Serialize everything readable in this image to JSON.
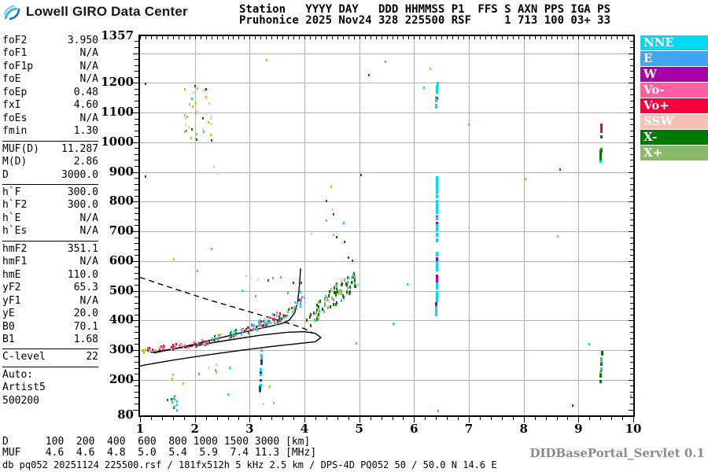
{
  "branding": {
    "logo_text": "Lowell GIRO Data Center"
  },
  "header": {
    "line1": "Station   YYYY DAY   DDD HHMMSS P1  FFS S AXN PPS IGA PS",
    "line2": "Pruhonice 2025 Nov24 328 225500 RSF     1 713 100 03+ 33"
  },
  "params": {
    "rows": [
      {
        "label": "foF2",
        "value": "3.950"
      },
      {
        "label": "foF1",
        "value": "N/A"
      },
      {
        "label": "foF1p",
        "value": "N/A"
      },
      {
        "label": "foE",
        "value": "N/A"
      },
      {
        "label": "foEp",
        "value": "0.48"
      },
      {
        "label": "fxI",
        "value": "4.60"
      },
      {
        "label": "foEs",
        "value": "N/A"
      },
      {
        "label": "fmin",
        "value": "1.30"
      },
      {
        "divider": true
      },
      {
        "label": "MUF(D)",
        "value": "11.287"
      },
      {
        "label": "M(D)",
        "value": "2.86"
      },
      {
        "label": "D",
        "value": "3000.0"
      },
      {
        "divider": true
      },
      {
        "label": "h`F",
        "value": "300.0"
      },
      {
        "label": "h`F2",
        "value": "300.0"
      },
      {
        "label": "h`E",
        "value": "N/A"
      },
      {
        "label": "h`Es",
        "value": "N/A"
      },
      {
        "divider": true
      },
      {
        "label": "hmF2",
        "value": "351.1"
      },
      {
        "label": "hmF1",
        "value": "N/A"
      },
      {
        "label": "hmE",
        "value": "110.0"
      },
      {
        "label": "yF2",
        "value": "65.3"
      },
      {
        "label": "yF1",
        "value": "N/A"
      },
      {
        "label": "yE",
        "value": "20.0"
      },
      {
        "label": "B0",
        "value": "70.1"
      },
      {
        "label": "B1",
        "value": "1.68"
      },
      {
        "divider": true
      },
      {
        "label": "C-level",
        "value": "22"
      },
      {
        "divider": true
      },
      {
        "label": "Auto:",
        "value": ""
      },
      {
        "label": "Artist5",
        "value": ""
      },
      {
        "label": "500200",
        "value": ""
      }
    ]
  },
  "legend": {
    "items": [
      {
        "label": "NNE",
        "color": "#00d9ef"
      },
      {
        "label": "E",
        "color": "#3ea6f2"
      },
      {
        "label": "W",
        "color": "#a800a8"
      },
      {
        "label": "Vo-",
        "color": "#ff5fa2"
      },
      {
        "label": "Vo+",
        "color": "#f5003d"
      },
      {
        "label": "SSW",
        "color": "#f7c0b5"
      },
      {
        "label": "X-",
        "color": "#007a00"
      },
      {
        "label": "X+",
        "color": "#86ba68"
      }
    ]
  },
  "dmuf": {
    "d_label": "D",
    "d_values": [
      "100",
      "200",
      "400",
      "600",
      "800",
      "1000",
      "1500",
      "3000"
    ],
    "d_unit": "[km]",
    "muf_label": "MUF",
    "muf_values": [
      "4.6",
      "4.6",
      "4.8",
      "5.0",
      "5.4",
      "5.9",
      "7.4",
      "11.3"
    ],
    "muf_unit": "[MHz]"
  },
  "footer": {
    "db_line": "db pq052 20251124 225500.rsf / 181fx512h 5 kHz 2.5 km / DPS-4D PQ052 50 / 50.0 N 14.6 E",
    "servlet": "DIDBasePortal_Servlet 0.1"
  },
  "chart_data": {
    "type": "scatter",
    "title": "Pruhonice digisonde ionogram 2025 Nov24 225500",
    "x_unit": "MHz",
    "y_unit": "km",
    "x_range": [
      1,
      10
    ],
    "y_range": [
      80,
      1357
    ],
    "x_ticks": [
      1,
      2,
      3,
      4,
      5,
      6,
      7,
      8,
      9,
      10
    ],
    "y_tick_labels": [
      1357,
      1200,
      1100,
      1000,
      900,
      800,
      700,
      600,
      500,
      400,
      300,
      200,
      80
    ],
    "grid": {
      "x_step": 1,
      "y_step": 100,
      "color": "#b2b2b2",
      "legend_position": "right"
    },
    "colors": {
      "nne": "#00d9ef",
      "e": "#3ea6f2",
      "w": "#a800a8",
      "vom": "#ff5fa2",
      "vop": "#f5003d",
      "ssw": "#f7c0b5",
      "xm": "#007a00",
      "xp": "#86ba68",
      "yellow": "#c2c400",
      "navy": "#2233cc"
    },
    "curves": [
      {
        "name": "forecast-dashed",
        "style": "dashed",
        "points": [
          [
            1.0,
            545
          ],
          [
            1.4,
            520
          ],
          [
            1.8,
            496
          ],
          [
            2.2,
            472
          ],
          [
            2.6,
            450
          ],
          [
            3.0,
            429
          ],
          [
            3.4,
            407
          ],
          [
            3.8,
            385
          ],
          [
            4.0,
            372
          ],
          [
            4.15,
            358
          ]
        ]
      },
      {
        "name": "o-trace",
        "style": "solid",
        "points": [
          [
            1.25,
            290
          ],
          [
            1.6,
            303
          ],
          [
            2.0,
            320
          ],
          [
            2.4,
            338
          ],
          [
            2.8,
            356
          ],
          [
            3.1,
            369
          ],
          [
            3.4,
            381
          ],
          [
            3.6,
            390
          ],
          [
            3.72,
            400
          ],
          [
            3.82,
            425
          ],
          [
            3.88,
            465
          ],
          [
            3.91,
            520
          ],
          [
            3.93,
            575
          ]
        ]
      },
      {
        "name": "trace-loop",
        "style": "solid",
        "points": [
          [
            1.2,
            292
          ],
          [
            2.0,
            315
          ],
          [
            2.6,
            333
          ],
          [
            3.2,
            350
          ],
          [
            3.7,
            360
          ],
          [
            4.0,
            362
          ],
          [
            4.2,
            356
          ],
          [
            4.3,
            342
          ],
          [
            4.2,
            328
          ],
          [
            3.9,
            322
          ],
          [
            3.4,
            312
          ],
          [
            2.8,
            298
          ],
          [
            2.2,
            283
          ],
          [
            1.6,
            266
          ],
          [
            1.1,
            250
          ],
          [
            1.0,
            246
          ]
        ]
      }
    ],
    "clusters": [
      {
        "name": "F-trace-low",
        "mode": "line",
        "f": [
          1.03,
          2.1
        ],
        "h": [
          297,
          322
        ],
        "jf": 0.02,
        "jh": 9,
        "n": 42,
        "size": [
          2,
          3
        ],
        "colors": [
          [
            "vop",
            3
          ],
          [
            "vom",
            3
          ],
          [
            "yellow",
            1.5
          ],
          [
            "ssw",
            1
          ],
          [
            "xm",
            0.8
          ],
          [
            "w",
            0.3
          ]
        ]
      },
      {
        "name": "F-trace-start-yellow",
        "mode": "box",
        "f": [
          1.02,
          1.12
        ],
        "h": [
          288,
          302
        ],
        "n": 4,
        "size": [
          2,
          3
        ],
        "colors": [
          [
            "yellow",
            1
          ]
        ]
      },
      {
        "name": "F-trace-mid",
        "mode": "line",
        "f": [
          2.1,
          3.05
        ],
        "h": [
          322,
          372
        ],
        "jf": 0.02,
        "jh": 11,
        "n": 46,
        "size": [
          2,
          3
        ],
        "colors": [
          [
            "vop",
            3
          ],
          [
            "vom",
            2.5
          ],
          [
            "xm",
            2
          ],
          [
            "nne",
            1.2
          ],
          [
            "ssw",
            0.8
          ],
          [
            "yellow",
            0.5
          ],
          [
            "w",
            0.4
          ],
          [
            "e",
            0.3
          ]
        ]
      },
      {
        "name": "F-trace-knot",
        "mode": "line",
        "f": [
          3.0,
          3.55
        ],
        "h": [
          368,
          415
        ],
        "jf": 0.03,
        "jh": 16,
        "n": 55,
        "size": [
          2,
          3
        ],
        "colors": [
          [
            "nne",
            3
          ],
          [
            "vom",
            2
          ],
          [
            "vop",
            1.5
          ],
          [
            "xm",
            1.5
          ],
          [
            "ssw",
            1
          ],
          [
            "e",
            0.5
          ],
          [
            "yellow",
            0.5
          ],
          [
            "xp",
            0.5
          ]
        ]
      },
      {
        "name": "F-trace-rise",
        "mode": "line",
        "f": [
          3.5,
          3.98
        ],
        "h": [
          400,
          472
        ],
        "jf": 0.03,
        "jh": 14,
        "n": 40,
        "size": [
          2,
          3
        ],
        "colors": [
          [
            "nne",
            3
          ],
          [
            "xm",
            2
          ],
          [
            "vom",
            1.2
          ],
          [
            "xp",
            1
          ],
          [
            "ssw",
            0.8
          ],
          [
            "vop",
            0.7
          ],
          [
            "e",
            0.5
          ]
        ]
      },
      {
        "name": "X-trace-columns",
        "mode": "line",
        "f": [
          4.0,
          4.95
        ],
        "h": [
          398,
          545
        ],
        "jf": 0.045,
        "jh": 32,
        "n": 85,
        "size": [
          2,
          4
        ],
        "colors": [
          [
            "xm",
            5.5
          ],
          [
            "xp",
            2.2
          ],
          [
            "nne",
            0.7
          ],
          [
            "ssw",
            0.5
          ],
          [
            "yellow",
            0.5
          ],
          [
            "e",
            0.3
          ]
        ]
      },
      {
        "name": "spread-above-trace",
        "mode": "box",
        "f": [
          2.85,
          4.0
        ],
        "h": [
          470,
          565
        ],
        "n": 14,
        "size": [
          2,
          3
        ],
        "colors": [
          [
            "nne",
            2
          ],
          [
            "ssw",
            1
          ],
          [
            "vom",
            1
          ],
          [
            "yellow",
            0.6
          ],
          [
            "w",
            0.4
          ],
          [
            "xm",
            0.6
          ]
        ]
      },
      {
        "name": "spreadF-column-6.4",
        "mode": "line",
        "f": [
          6.41,
          6.42
        ],
        "h": [
          424,
          886
        ],
        "jf": 0,
        "jh": 4,
        "n": 62,
        "size": [
          3,
          5
        ],
        "colors": [
          [
            "nne",
            5
          ],
          [
            "w",
            1
          ]
        ]
      },
      {
        "name": "spreadF-top-6.4",
        "mode": "line",
        "f": [
          6.4,
          6.43
        ],
        "h": [
          1118,
          1202
        ],
        "jf": 0,
        "jh": 3,
        "n": 16,
        "size": [
          3,
          4
        ],
        "colors": [
          [
            "nne",
            3
          ],
          [
            "w",
            2
          ]
        ]
      },
      {
        "name": "oblique-9.4-high",
        "mode": "line",
        "f": [
          9.4,
          9.43
        ],
        "h": [
          938,
          1032
        ],
        "jf": 0,
        "jh": 4,
        "n": 13,
        "size": [
          3,
          4
        ],
        "colors": [
          [
            "xm",
            4
          ],
          [
            "xp",
            1
          ],
          [
            "nne",
            0.5
          ]
        ]
      },
      {
        "name": "oblique-9.4-cap",
        "mode": "line",
        "f": [
          9.41,
          9.42
        ],
        "h": [
          1034,
          1060
        ],
        "jf": 0,
        "jh": 2,
        "n": 5,
        "size": [
          3,
          4
        ],
        "colors": [
          [
            "vop",
            1
          ]
        ]
      },
      {
        "name": "oblique-9.4-low",
        "mode": "line",
        "f": [
          9.4,
          9.43
        ],
        "h": [
          190,
          295
        ],
        "jf": 0,
        "jh": 4,
        "n": 14,
        "size": [
          3,
          4
        ],
        "colors": [
          [
            "xm",
            4
          ],
          [
            "xp",
            1.2
          ],
          [
            "vom",
            0.5
          ],
          [
            "nne",
            0.5
          ]
        ]
      },
      {
        "name": "scatter-high-2MHz",
        "mode": "box",
        "f": [
          1.78,
          2.3
        ],
        "h": [
          1005,
          1205
        ],
        "n": 36,
        "size": [
          2,
          3
        ],
        "colors": [
          [
            "yellow",
            5
          ],
          [
            "ssw",
            1
          ],
          [
            "xm",
            0.6
          ],
          [
            "nne",
            0.4
          ],
          [
            "e",
            0.3
          ],
          [
            "w",
            0.2
          ]
        ]
      },
      {
        "name": "Es-low",
        "mode": "box",
        "f": [
          1.5,
          1.73
        ],
        "h": [
          95,
          150
        ],
        "n": 12,
        "size": [
          2,
          3
        ],
        "colors": [
          [
            "xm",
            1.5
          ],
          [
            "nne",
            1.5
          ],
          [
            "yellow",
            1
          ],
          [
            "vom",
            0.8
          ],
          [
            "e",
            0.5
          ]
        ]
      },
      {
        "name": "below-trace-strays",
        "mode": "box",
        "f": [
          1.35,
          3.0
        ],
        "h": [
          185,
          270
        ],
        "n": 9,
        "size": [
          2,
          3
        ],
        "colors": [
          [
            "nne",
            1.5
          ],
          [
            "ssw",
            1
          ],
          [
            "yellow",
            0.8
          ],
          [
            "vom",
            0.6
          ]
        ]
      },
      {
        "name": "column-3.2",
        "mode": "line",
        "f": [
          3.19,
          3.22
        ],
        "h": [
          152,
          298
        ],
        "jf": 0,
        "jh": 5,
        "n": 24,
        "size": [
          3,
          3
        ],
        "colors": [
          [
            "navy",
            2.5
          ],
          [
            "nne",
            2.5
          ],
          [
            "e",
            1
          ],
          [
            "xm",
            0.5
          ]
        ]
      }
    ],
    "points": [
      [
        1.1,
        1197,
        "navy"
      ],
      [
        1.1,
        883,
        "navy"
      ],
      [
        3.31,
        1276,
        "yellow"
      ],
      [
        2.35,
        915,
        "ssw"
      ],
      [
        2.42,
        895,
        "ssw"
      ],
      [
        5.48,
        1270,
        "e"
      ],
      [
        6.3,
        1248,
        "yellow"
      ],
      [
        6.18,
        1183,
        "nne"
      ],
      [
        5.17,
        1225,
        "xm"
      ],
      [
        7.0,
        1060,
        "nne"
      ],
      [
        5.88,
        522,
        "nne"
      ],
      [
        4.95,
        322,
        "nne"
      ],
      [
        5.62,
        390,
        "nne"
      ],
      [
        6.44,
        95,
        "nne"
      ],
      [
        8.9,
        112,
        "navy"
      ],
      [
        9.2,
        321,
        "nne"
      ],
      [
        9.95,
        146,
        "vom"
      ],
      [
        8.66,
        909,
        "xm"
      ],
      [
        8.62,
        684,
        "yellow"
      ],
      [
        8.03,
        875,
        "yellow"
      ],
      [
        4.49,
        851,
        "yellow"
      ],
      [
        4.4,
        803,
        "xm"
      ],
      [
        4.52,
        774,
        "ssw"
      ],
      [
        4.53,
        758,
        "xm"
      ],
      [
        4.4,
        737,
        "xp"
      ],
      [
        4.72,
        729,
        "nne"
      ],
      [
        4.13,
        692,
        "ssw"
      ],
      [
        4.53,
        687,
        "yellow"
      ],
      [
        4.59,
        679,
        "xm"
      ],
      [
        4.73,
        665,
        "navy"
      ],
      [
        4.81,
        612,
        "xm"
      ],
      [
        4.88,
        600,
        "xm"
      ],
      [
        5.03,
        890,
        "xm"
      ],
      [
        2.05,
        565,
        "nne"
      ],
      [
        2.3,
        640,
        "nne"
      ],
      [
        1.62,
        605,
        "yellow"
      ],
      [
        3.37,
        178,
        "yellow"
      ],
      [
        3.44,
        120,
        "yellow"
      ],
      [
        3.25,
        118,
        "ssw"
      ],
      [
        2.6,
        150,
        "nne"
      ]
    ]
  }
}
